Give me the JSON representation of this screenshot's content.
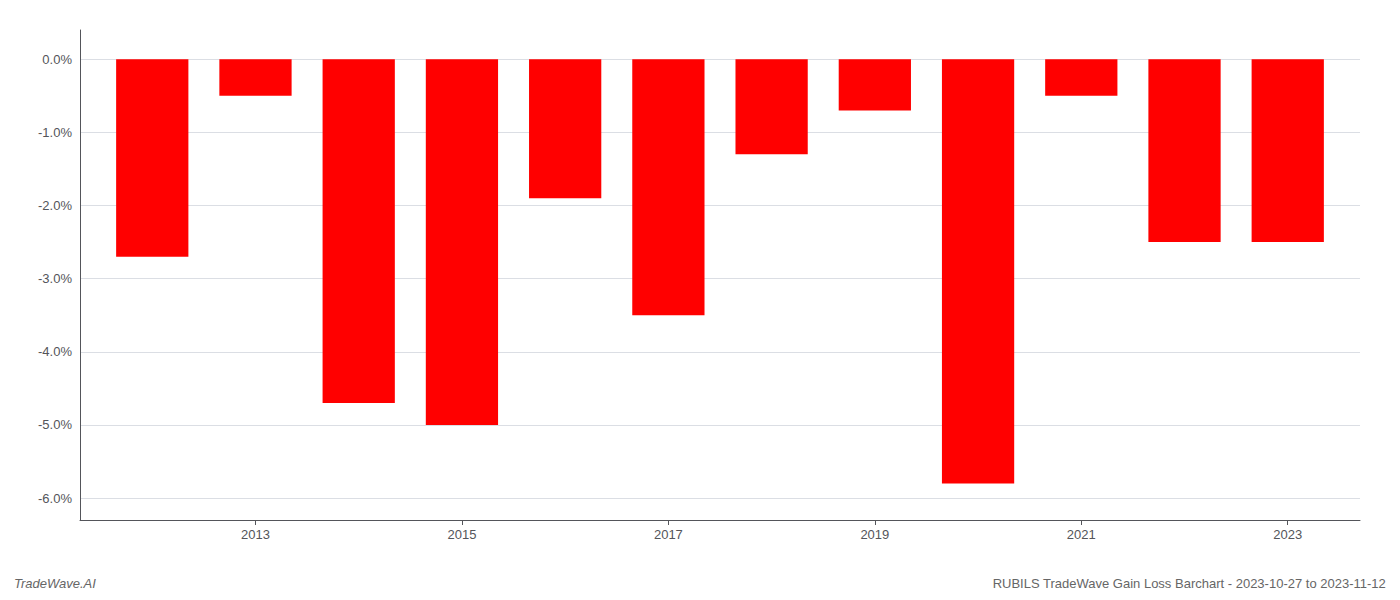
{
  "chart_data": {
    "type": "bar",
    "x": [
      2012,
      2013,
      2014,
      2015,
      2016,
      2017,
      2018,
      2019,
      2020,
      2021,
      2022,
      2023
    ],
    "values": [
      -0.027,
      -0.005,
      -0.047,
      -0.05,
      -0.019,
      -0.035,
      -0.013,
      -0.007,
      -0.058,
      -0.005,
      -0.025,
      -0.025
    ],
    "color": "#ff0000",
    "xlim": [
      2011.3,
      2023.7
    ],
    "xticks": [
      2013,
      2015,
      2017,
      2019,
      2021,
      2023
    ],
    "ylim": [
      -0.063,
      0.004
    ],
    "yticks": [
      {
        "value": 0.0,
        "label": "0.0%"
      },
      {
        "value": -0.01,
        "label": "-1.0%"
      },
      {
        "value": -0.02,
        "label": "-2.0%"
      },
      {
        "value": -0.03,
        "label": "-3.0%"
      },
      {
        "value": -0.04,
        "label": "-4.0%"
      },
      {
        "value": -0.05,
        "label": "-5.0%"
      },
      {
        "value": -0.06,
        "label": "-6.0%"
      }
    ],
    "grid": true,
    "annotations": [
      "TradeWave.AI",
      "RUBILS TradeWave Gain Loss Barchart - 2023-10-27 to 2023-11-12"
    ]
  }
}
